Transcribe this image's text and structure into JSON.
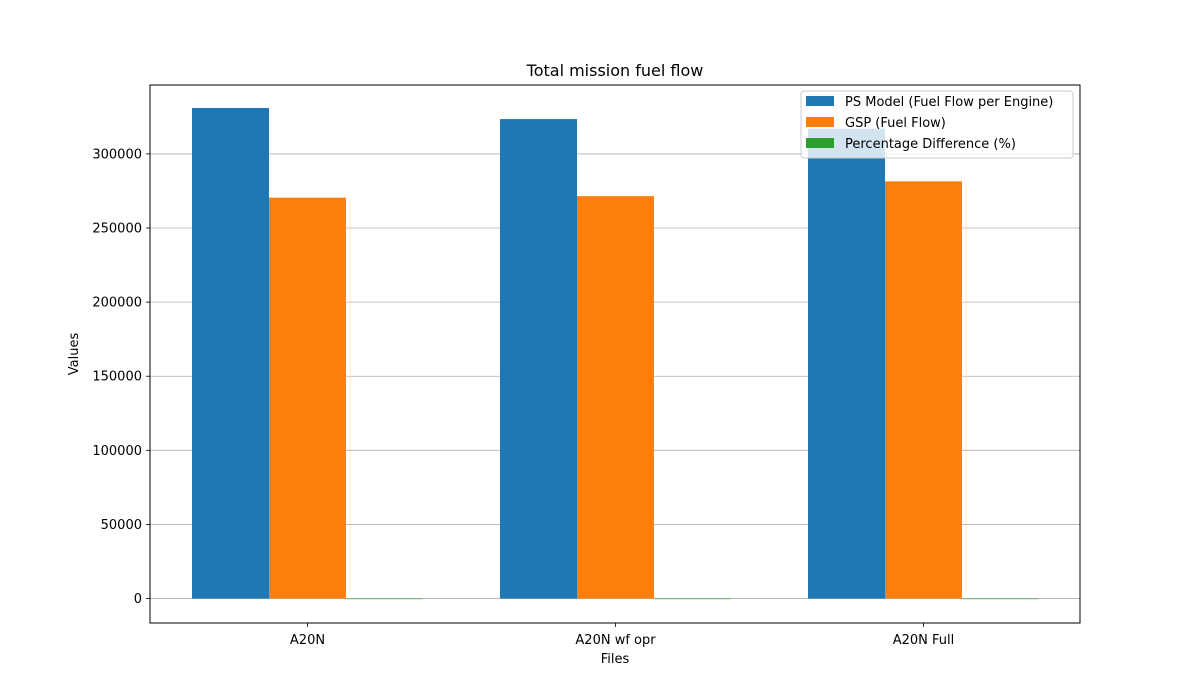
{
  "chart_data": {
    "type": "bar",
    "title": "Total mission fuel flow",
    "xlabel": "Files",
    "ylabel": "Values",
    "categories": [
      "A20N",
      "A20N wf opr",
      "A20N Full"
    ],
    "ylim": [
      -16500,
      346500
    ],
    "yticks": [
      0,
      50000,
      100000,
      150000,
      200000,
      250000,
      300000
    ],
    "ytick_labels": [
      "0",
      "50000",
      "100000",
      "150000",
      "200000",
      "250000",
      "300000"
    ],
    "grid": "horizontal",
    "legend_position": "top-right",
    "series": [
      {
        "name": "PS Model (Fuel Flow per Engine)",
        "color": "#1f77b4",
        "values": [
          331000,
          323500,
          317000
        ]
      },
      {
        "name": "GSP (Fuel Flow)",
        "color": "#ff7f0e",
        "values": [
          270500,
          271500,
          281500
        ]
      },
      {
        "name": "Percentage Difference (%)",
        "color": "#2ca02c",
        "values": [
          -18.3,
          -16.1,
          -11.2
        ]
      }
    ]
  }
}
